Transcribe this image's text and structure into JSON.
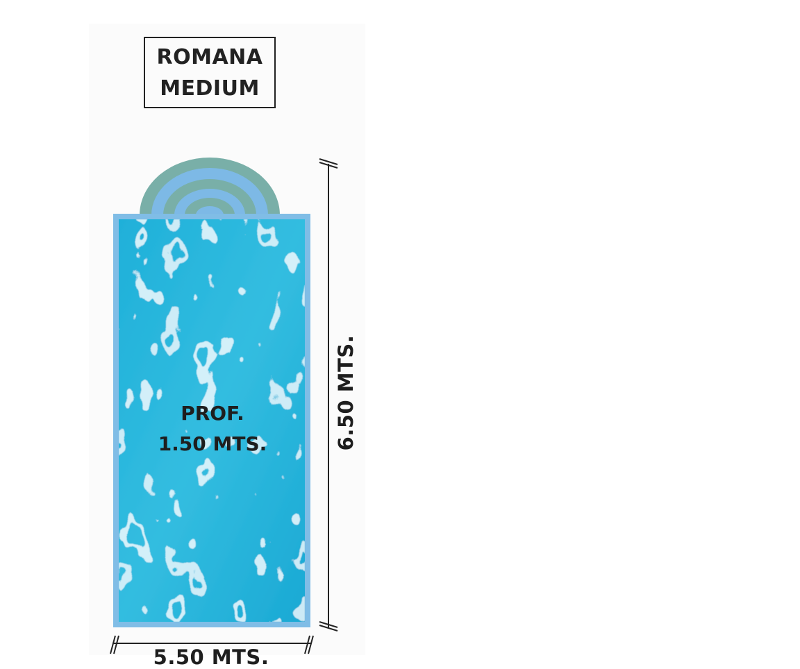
{
  "title": {
    "line1": "ROMANA",
    "line2": "MEDIUM"
  },
  "pool": {
    "depth_label_line1": "PROF.",
    "depth_label_line2": "1.50 MTS.",
    "length_label": "6.50 MTS.",
    "width_label": "5.50 MTS."
  },
  "colors": {
    "water": "#27b3d8",
    "water_highlight": "#e8fbff",
    "pool_border": "#80bde6",
    "steps_outer": "#79afa8",
    "steps_inner": "#7db9e6",
    "text": "#222222",
    "card_background": "#fbfbfb"
  }
}
